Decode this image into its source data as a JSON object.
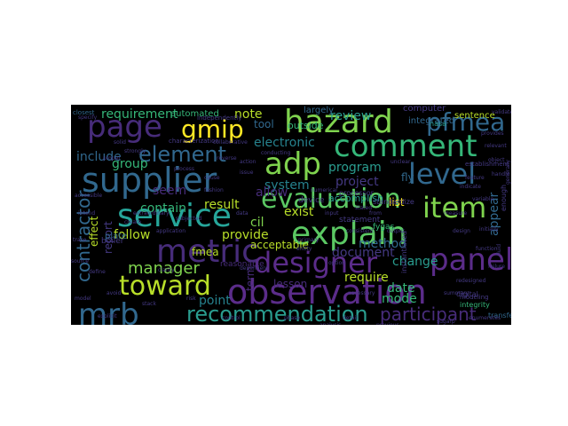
{
  "palette": {
    "green": "#7fd34e",
    "yellow": "#fde725",
    "teal": "#26828e",
    "lightteal": "#2a9d8f",
    "blue": "#3b528b",
    "blue2": "#31688e",
    "purple": "#472c7a",
    "purple2": "#5b2c8a",
    "mint": "#35b779",
    "lime": "#b8de29",
    "navy": "#443983"
  },
  "words": [
    {
      "text": "hazard",
      "color": "#7fd34e"
    },
    {
      "text": "page",
      "color": "#472c7a"
    },
    {
      "text": "gmip",
      "color": "#fde725"
    },
    {
      "text": "comment",
      "color": "#35b779"
    },
    {
      "text": "adp",
      "color": "#7fd34e"
    },
    {
      "text": "pfmea",
      "color": "#31688e"
    },
    {
      "text": "supplier",
      "color": "#31688e"
    },
    {
      "text": "element",
      "color": "#31688e"
    },
    {
      "text": "level",
      "color": "#31688e"
    },
    {
      "text": "evaluation",
      "color": "#5bc863"
    },
    {
      "text": "item",
      "color": "#7fd34e"
    },
    {
      "text": "service",
      "color": "#26a69a"
    },
    {
      "text": "explain",
      "color": "#5bc863"
    },
    {
      "text": "metric",
      "color": "#472c7a"
    },
    {
      "text": "designer",
      "color": "#5b2c8a"
    },
    {
      "text": "panel",
      "color": "#5b2c8a"
    },
    {
      "text": "toward",
      "color": "#b8de29"
    },
    {
      "text": "observation",
      "color": "#5b2c8a"
    },
    {
      "text": "mrb",
      "color": "#31688e"
    },
    {
      "text": "recommendation",
      "color": "#2a9d8f"
    },
    {
      "text": "participant",
      "color": "#472c7a"
    },
    {
      "text": "manager",
      "color": "#7fd34e"
    },
    {
      "text": "contractor",
      "color": "#31688e"
    },
    {
      "text": "requirement",
      "color": "#35b779"
    },
    {
      "text": "review",
      "color": "#2a9d8f"
    },
    {
      "text": "note",
      "color": "#b8de29"
    },
    {
      "text": "electronic",
      "color": "#26828e"
    },
    {
      "text": "include",
      "color": "#31688e"
    },
    {
      "text": "group",
      "color": "#35b779"
    },
    {
      "text": "system",
      "color": "#26828e"
    },
    {
      "text": "program",
      "color": "#2a9d8f"
    },
    {
      "text": "project",
      "color": "#443983"
    },
    {
      "text": "allow",
      "color": "#472c7a"
    },
    {
      "text": "seem",
      "color": "#472c7a"
    },
    {
      "text": "contain",
      "color": "#35b779"
    },
    {
      "text": "result",
      "color": "#b8de29"
    },
    {
      "text": "cil",
      "color": "#7fd34e"
    },
    {
      "text": "exist",
      "color": "#b8de29"
    },
    {
      "text": "follow",
      "color": "#b8de29"
    },
    {
      "text": "provide",
      "color": "#b8de29"
    },
    {
      "text": "fmea",
      "color": "#b8de29"
    },
    {
      "text": "document",
      "color": "#443983"
    },
    {
      "text": "require",
      "color": "#b8de29"
    },
    {
      "text": "method",
      "color": "#31688e"
    },
    {
      "text": "date",
      "color": "#35b779"
    },
    {
      "text": "mode",
      "color": "#35b779"
    },
    {
      "text": "change",
      "color": "#2a9d8f"
    },
    {
      "text": "list",
      "color": "#fde725"
    },
    {
      "text": "point",
      "color": "#26828e"
    },
    {
      "text": "term",
      "color": "#472c7a"
    },
    {
      "text": "lesson",
      "color": "#472c7a"
    },
    {
      "text": "acceptable",
      "color": "#b8de29"
    },
    {
      "text": "effect",
      "color": "#b8de29"
    },
    {
      "text": "report",
      "color": "#443983"
    },
    {
      "text": "appear",
      "color": "#31688e"
    },
    {
      "text": "accomplish",
      "color": "#2a9d8f"
    },
    {
      "text": "tool",
      "color": "#31688e"
    },
    {
      "text": "outside",
      "color": "#35b779"
    },
    {
      "text": "automated",
      "color": "#35b779"
    },
    {
      "text": "computer",
      "color": "#443983"
    },
    {
      "text": "fly",
      "color": "#31688e"
    },
    {
      "text": "integrated",
      "color": "#31688e"
    },
    {
      "text": "sentence",
      "color": "#b8de29"
    },
    {
      "text": "nasa",
      "color": "#2a9d8f"
    },
    {
      "text": "largely",
      "color": "#31688e"
    },
    {
      "text": "reasonable",
      "color": "#472c7a"
    },
    {
      "text": "device",
      "color": "#443983"
    },
    {
      "text": "plate",
      "color": "#31688e"
    },
    {
      "text": "boiler",
      "color": "#443983"
    },
    {
      "text": "fygas",
      "color": "#35b779"
    },
    {
      "text": "statement",
      "color": "#443983"
    },
    {
      "text": "processor",
      "color": "#443983"
    },
    {
      "text": "standardize",
      "color": "#443983"
    },
    {
      "text": "instantiated",
      "color": "#443983"
    },
    {
      "text": "digital",
      "color": "#443983"
    },
    {
      "text": "integrity",
      "color": "#35b779"
    },
    {
      "text": "modeling",
      "color": "#443983"
    },
    {
      "text": "transfer",
      "color": "#31688e"
    },
    {
      "text": "establishment",
      "color": "#443983"
    },
    {
      "text": "independently",
      "color": "#443983"
    },
    {
      "text": "characterization",
      "color": "#443983"
    },
    {
      "text": "application",
      "color": "#443983"
    },
    {
      "text": "clarity",
      "color": "#443983"
    },
    {
      "text": "stack",
      "color": "#443983"
    },
    {
      "text": "closest",
      "color": "#31688e"
    },
    {
      "text": "enough",
      "color": "#443983"
    },
    {
      "text": "specify",
      "color": "#443983"
    },
    {
      "text": "solid",
      "color": "#443983"
    },
    {
      "text": "redesigned",
      "color": "#443983"
    },
    {
      "text": "enumerates",
      "color": "#443983"
    },
    {
      "text": "sugarp",
      "color": "#443983"
    },
    {
      "text": "indicate",
      "color": "#443983"
    },
    {
      "text": "generally",
      "color": "#443983"
    },
    {
      "text": "fluid",
      "color": "#443983"
    },
    {
      "text": "proper",
      "color": "#443983"
    },
    {
      "text": "extraordinary",
      "color": "#443983"
    },
    {
      "text": "from",
      "color": "#443983"
    },
    {
      "text": "avoid",
      "color": "#443983"
    },
    {
      "text": "explicit",
      "color": "#443983"
    },
    {
      "text": "strongly",
      "color": "#443983"
    },
    {
      "text": "conducting",
      "color": "#443983"
    },
    {
      "text": "numerical",
      "color": "#443983"
    },
    {
      "text": "stated",
      "color": "#443983"
    },
    {
      "text": "collaborative",
      "color": "#443983"
    },
    {
      "text": "reverse",
      "color": "#443983"
    },
    {
      "text": "subjected",
      "color": "#443983"
    },
    {
      "text": "dependent",
      "color": "#443983"
    },
    {
      "text": "primary",
      "color": "#443983"
    },
    {
      "text": "necessary",
      "color": "#443983"
    },
    {
      "text": "relevant",
      "color": "#443983"
    },
    {
      "text": "variable",
      "color": "#443983"
    },
    {
      "text": "summary",
      "color": "#443983"
    },
    {
      "text": "trace",
      "color": "#443983"
    },
    {
      "text": "accessible",
      "color": "#443983"
    },
    {
      "text": "intend",
      "color": "#443983"
    },
    {
      "text": "consistent",
      "color": "#443983"
    },
    {
      "text": "previous",
      "color": "#443983"
    },
    {
      "text": "analysis",
      "color": "#443983"
    },
    {
      "text": "measure",
      "color": "#443983"
    },
    {
      "text": "initially",
      "color": "#443983"
    },
    {
      "text": "validate",
      "color": "#443983"
    },
    {
      "text": "provides",
      "color": "#443983"
    },
    {
      "text": "fashion",
      "color": "#443983"
    },
    {
      "text": "issue",
      "color": "#443983"
    },
    {
      "text": "entity",
      "color": "#443983"
    },
    {
      "text": "option",
      "color": "#443983"
    },
    {
      "text": "unclear",
      "color": "#443983"
    },
    {
      "text": "object",
      "color": "#443983"
    },
    {
      "text": "handle",
      "color": "#443983"
    },
    {
      "text": "feature",
      "color": "#443983"
    },
    {
      "text": "create",
      "color": "#443983"
    },
    {
      "text": "define",
      "color": "#443983"
    },
    {
      "text": "control",
      "color": "#443983"
    },
    {
      "text": "phase",
      "color": "#443983"
    },
    {
      "text": "detail",
      "color": "#443983"
    },
    {
      "text": "source",
      "color": "#443983"
    },
    {
      "text": "model",
      "color": "#443983"
    },
    {
      "text": "risk",
      "color": "#443983"
    },
    {
      "text": "data",
      "color": "#443983"
    },
    {
      "text": "input",
      "color": "#443983"
    },
    {
      "text": "output",
      "color": "#443983"
    },
    {
      "text": "failure",
      "color": "#443983"
    },
    {
      "text": "function",
      "color": "#443983"
    },
    {
      "text": "design",
      "color": "#443983"
    },
    {
      "text": "process",
      "color": "#443983"
    },
    {
      "text": "cause",
      "color": "#443983"
    },
    {
      "text": "action",
      "color": "#443983"
    }
  ]
}
